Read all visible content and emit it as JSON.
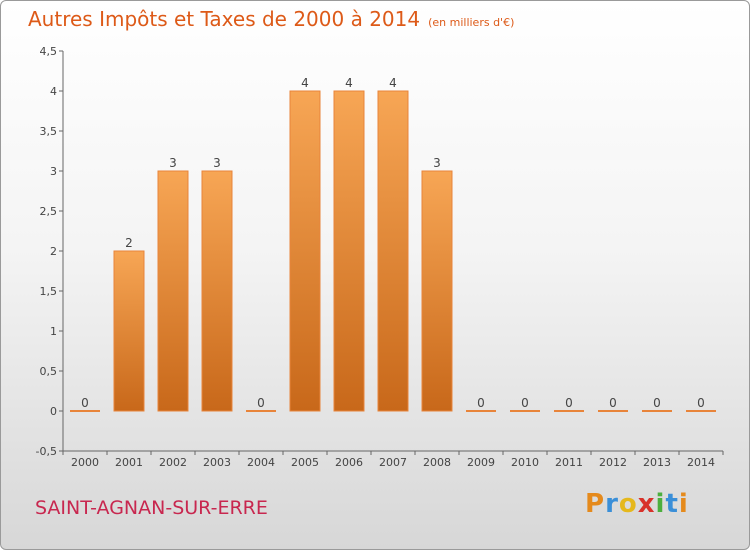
{
  "chart_data": {
    "type": "bar",
    "title": "Autres Impôts et Taxes de 2000 à 2014",
    "subtitle": "(en milliers d'€)",
    "categories": [
      "2000",
      "2001",
      "2002",
      "2003",
      "2004",
      "2005",
      "2006",
      "2007",
      "2008",
      "2009",
      "2010",
      "2011",
      "2012",
      "2013",
      "2014"
    ],
    "values": [
      0,
      2,
      3,
      3,
      0,
      4,
      4,
      4,
      3,
      0,
      0,
      0,
      0,
      0,
      0
    ],
    "value_labels": [
      "0",
      "2",
      "3",
      "3",
      "0",
      "4",
      "4",
      "4",
      "3",
      "0",
      "0",
      "0",
      "0",
      "0",
      "0"
    ],
    "ylim": [
      -0.5,
      4.5
    ],
    "yticks": [
      -0.5,
      0,
      0.5,
      1,
      1.5,
      2,
      2.5,
      3,
      3.5,
      4,
      4.5
    ],
    "ytick_labels": [
      "-0,5",
      "0",
      "0,5",
      "1",
      "1,5",
      "2",
      "2,5",
      "3",
      "3,5",
      "4",
      "4,5"
    ],
    "grid": false,
    "bar_color": "#e8843a",
    "bar_color_light": "#f7a655",
    "bar_color_dark": "#c8681a"
  },
  "footer": {
    "commune": "SAINT-AGNAN-SUR-ERRE",
    "logo_letters": [
      "P",
      "r",
      "o",
      "x",
      "i",
      "t",
      "i"
    ],
    "logo_colors": [
      "#e58a1c",
      "#3a8fd8",
      "#e5b81c",
      "#d8312a",
      "#4caf3e",
      "#3a8fd8",
      "#e58a1c"
    ]
  }
}
